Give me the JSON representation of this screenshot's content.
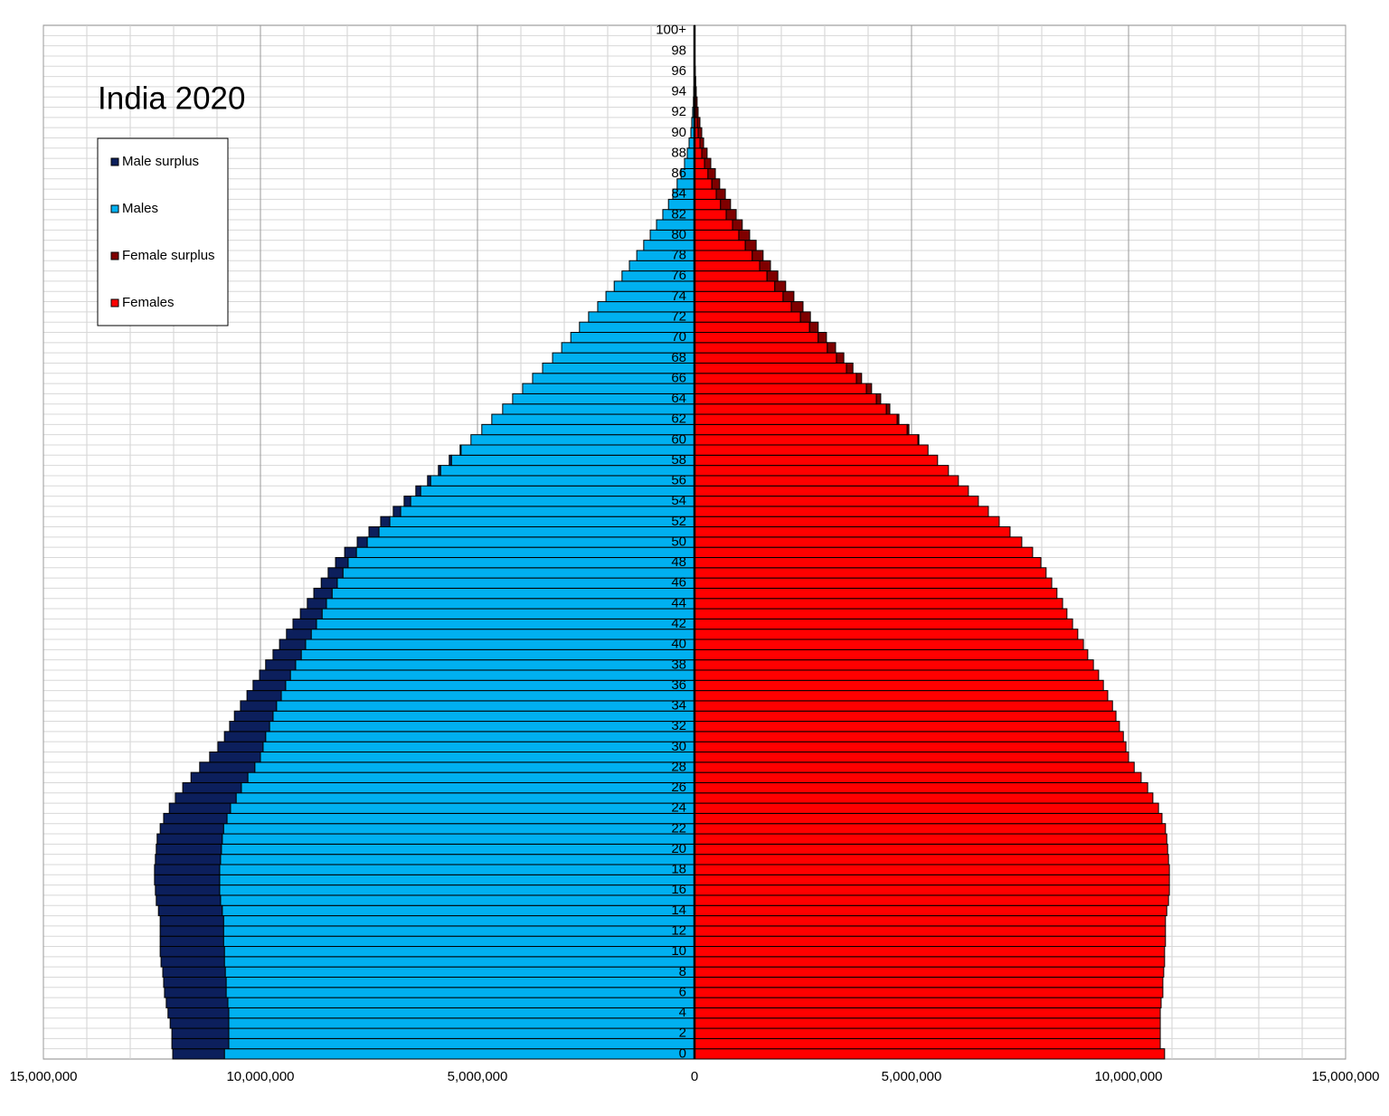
{
  "chart_data": {
    "type": "pyramid",
    "title": "India 2020",
    "categories": [
      "0",
      null,
      "2",
      null,
      "4",
      null,
      "6",
      null,
      "8",
      null,
      "10",
      null,
      "12",
      null,
      "14",
      null,
      "16",
      null,
      "18",
      null,
      "20",
      null,
      "22",
      null,
      "24",
      null,
      "26",
      null,
      "28",
      null,
      "30",
      null,
      "32",
      null,
      "34",
      null,
      "36",
      null,
      "38",
      null,
      "40",
      null,
      "42",
      null,
      "44",
      null,
      "46",
      null,
      "48",
      null,
      "50",
      null,
      "52",
      null,
      "54",
      null,
      "56",
      null,
      "58",
      null,
      "60",
      null,
      "62",
      null,
      "64",
      null,
      "66",
      null,
      "68",
      null,
      "70",
      null,
      "72",
      null,
      "74",
      null,
      "76",
      null,
      "78",
      null,
      "80",
      null,
      "82",
      null,
      "84",
      null,
      "86",
      null,
      "88",
      null,
      "90",
      null,
      "92",
      null,
      "94",
      null,
      "96",
      null,
      "98",
      null,
      "100+"
    ],
    "series": [
      {
        "name": "Male surplus",
        "color": "#0c1f5c",
        "side": "left",
        "values": [
          1190000,
          1310000,
          1310000,
          1350000,
          1400000,
          1420000,
          1420000,
          1440000,
          1440000,
          1460000,
          1480000,
          1460000,
          1460000,
          1460000,
          1470000,
          1480000,
          1480000,
          1500000,
          1500000,
          1500000,
          1500000,
          1500000,
          1460000,
          1460000,
          1410000,
          1400000,
          1350000,
          1310000,
          1270000,
          1170000,
          1040000,
          950000,
          920000,
          890000,
          830000,
          790000,
          750000,
          710000,
          690000,
          650000,
          600000,
          570000,
          540000,
          500000,
          440000,
          420000,
          370000,
          340000,
          290000,
          270000,
          230000,
          230000,
          210000,
          170000,
          150000,
          110000,
          70000,
          50000,
          50000,
          20000,
          0,
          0,
          0,
          0,
          0,
          0,
          0,
          0,
          0,
          0,
          0,
          0,
          0,
          0,
          0,
          0,
          0,
          0,
          0,
          0,
          0,
          0,
          0,
          0,
          0,
          0,
          0,
          0,
          0,
          0,
          0,
          0,
          0,
          0,
          0,
          0,
          0,
          0,
          0,
          0,
          0
        ]
      },
      {
        "name": "Males",
        "color": "#00b0f0",
        "side": "left",
        "values": [
          10830000,
          10730000,
          10730000,
          10730000,
          10730000,
          10750000,
          10790000,
          10790000,
          10810000,
          10830000,
          10830000,
          10850000,
          10850000,
          10850000,
          10880000,
          10920000,
          10940000,
          10940000,
          10940000,
          10920000,
          10900000,
          10880000,
          10850000,
          10770000,
          10690000,
          10560000,
          10440000,
          10290000,
          10130000,
          10000000,
          9940000,
          9880000,
          9790000,
          9710000,
          9630000,
          9520000,
          9420000,
          9310000,
          9190000,
          9060000,
          8960000,
          8830000,
          8710000,
          8580000,
          8480000,
          8350000,
          8230000,
          8100000,
          7980000,
          7790000,
          7540000,
          7270000,
          7020000,
          6770000,
          6540000,
          6310000,
          6080000,
          5850000,
          5600000,
          5380000,
          5150000,
          4900000,
          4670000,
          4420000,
          4190000,
          3960000,
          3730000,
          3500000,
          3270000,
          3060000,
          2850000,
          2650000,
          2440000,
          2230000,
          2040000,
          1850000,
          1670000,
          1500000,
          1330000,
          1170000,
          1020000,
          875000,
          730000,
          600000,
          500000,
          400000,
          310000,
          230000,
          167000,
          125000,
          83000,
          63000,
          42000,
          25000,
          17000,
          11000,
          7000,
          4000,
          3000,
          2000,
          2000
        ]
      },
      {
        "name": "Female surplus",
        "color": "#7f0000",
        "side": "right",
        "values": [
          0,
          0,
          0,
          0,
          0,
          0,
          0,
          0,
          0,
          0,
          0,
          0,
          0,
          0,
          0,
          0,
          0,
          0,
          0,
          0,
          0,
          0,
          0,
          0,
          0,
          0,
          0,
          0,
          0,
          0,
          0,
          0,
          0,
          0,
          0,
          0,
          0,
          0,
          0,
          0,
          0,
          0,
          0,
          0,
          0,
          0,
          0,
          0,
          0,
          0,
          0,
          0,
          0,
          0,
          0,
          0,
          0,
          0,
          0,
          0,
          20000,
          40000,
          40000,
          80000,
          100000,
          120000,
          120000,
          150000,
          170000,
          190000,
          190000,
          200000,
          230000,
          270000,
          250000,
          250000,
          250000,
          250000,
          250000,
          250000,
          250000,
          225000,
          230000,
          230000,
          210000,
          180000,
          170000,
          145000,
          123000,
          85000,
          84000,
          62000,
          41000,
          35000,
          23000,
          17000,
          11000,
          7000,
          4000,
          2000,
          2000
        ]
      },
      {
        "name": "Females",
        "color": "#ff0000",
        "side": "right",
        "values": [
          10830000,
          10730000,
          10730000,
          10730000,
          10730000,
          10750000,
          10790000,
          10790000,
          10810000,
          10830000,
          10830000,
          10850000,
          10850000,
          10850000,
          10880000,
          10920000,
          10940000,
          10940000,
          10940000,
          10920000,
          10900000,
          10880000,
          10850000,
          10770000,
          10690000,
          10560000,
          10440000,
          10290000,
          10130000,
          10000000,
          9940000,
          9880000,
          9790000,
          9710000,
          9630000,
          9520000,
          9420000,
          9310000,
          9190000,
          9060000,
          8960000,
          8830000,
          8710000,
          8580000,
          8480000,
          8350000,
          8230000,
          8100000,
          7980000,
          7790000,
          7540000,
          7270000,
          7020000,
          6770000,
          6540000,
          6310000,
          6080000,
          5850000,
          5600000,
          5380000,
          5150000,
          4900000,
          4670000,
          4420000,
          4190000,
          3960000,
          3730000,
          3500000,
          3270000,
          3060000,
          2850000,
          2650000,
          2440000,
          2230000,
          2040000,
          1850000,
          1670000,
          1500000,
          1330000,
          1170000,
          1020000,
          875000,
          730000,
          600000,
          500000,
          400000,
          310000,
          230000,
          167000,
          125000,
          83000,
          63000,
          42000,
          25000,
          17000,
          11000,
          7000,
          4000,
          3000,
          2000,
          2000
        ]
      }
    ],
    "xlim": [
      -15000000,
      15000000
    ],
    "xticks": [
      {
        "value": -15000000,
        "label": "15,000,000"
      },
      {
        "value": -10000000,
        "label": "10,000,000"
      },
      {
        "value": -5000000,
        "label": "5,000,000"
      },
      0,
      {
        "value": 5000000,
        "label": "5,000,000"
      },
      {
        "value": 10000000,
        "label": "10,000,000"
      },
      {
        "value": 15000000,
        "label": "15,000,000"
      }
    ],
    "grid": true,
    "legend": "upper left"
  }
}
